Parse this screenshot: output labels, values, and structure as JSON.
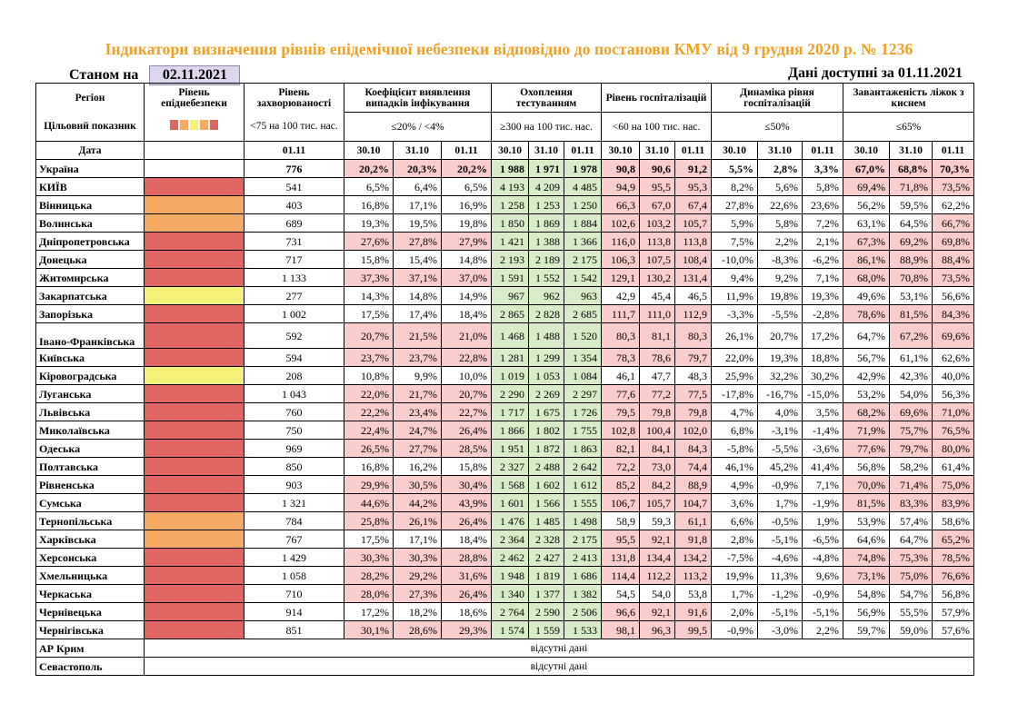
{
  "title": "Індикатори визначення рівнів епідемічної небезпеки відповідно до постанови КМУ від 9 грудня 2020 р. № 1236",
  "as_of_label": "Станом на",
  "as_of_date": "02.11.2021",
  "available_label": "Дані доступні за  01.11.2021",
  "headers": {
    "region": "Регіон",
    "target": "Цільовий показник",
    "date": "Дата",
    "level": "Рівень епіднебезпеки",
    "morbidity": "Рівень захворюваності",
    "morbidity_target": "<75 на 100 тис. нас.",
    "detection": "Коефіцієнт виявлення випадків інфікування",
    "detection_target": "≤20% / <4%",
    "testing": "Охоплення тестуванням",
    "testing_target": "≥300 на 100 тис. нас.",
    "hosp": "Рівень госпіталізацій",
    "hosp_target": "<60 на 100 тис. нас.",
    "dyn": "Динаміка рівня госпіталізацій",
    "dyn_target": "≤50%",
    "beds": "Завантаженість ліжок з киснем",
    "beds_target": "≤65%",
    "d0": "30.10",
    "d1": "31.10",
    "d2": "01.11"
  },
  "legend_colors": [
    "#e06460",
    "#f4aa62",
    "#f4f078",
    "#f4aa62",
    "#e06460"
  ],
  "rows": [
    {
      "name": "Україна",
      "level": "",
      "m": "776",
      "c": [
        "20,2%",
        "20,3%",
        "20,2%"
      ],
      "t": [
        "1 988",
        "1 971",
        "1 978"
      ],
      "h": [
        "90,8",
        "90,6",
        "91,2"
      ],
      "d": [
        "5,5%",
        "2,8%",
        "3,3%"
      ],
      "b": [
        "67,0%",
        "68,8%",
        "70,3%"
      ]
    },
    {
      "name": "КИЇВ",
      "level": "red",
      "m": "541",
      "c": [
        "6,5%",
        "6,4%",
        "6,5%"
      ],
      "t": [
        "4 193",
        "4 209",
        "4 485"
      ],
      "h": [
        "94,9",
        "95,5",
        "95,3"
      ],
      "d": [
        "8,2%",
        "5,6%",
        "5,8%"
      ],
      "b": [
        "69,4%",
        "71,8%",
        "73,5%"
      ]
    },
    {
      "name": "Вінницька",
      "level": "orange",
      "m": "403",
      "c": [
        "16,8%",
        "17,1%",
        "16,9%"
      ],
      "t": [
        "1 258",
        "1 253",
        "1 250"
      ],
      "h": [
        "66,3",
        "67,0",
        "67,4"
      ],
      "d": [
        "27,8%",
        "22,6%",
        "23,6%"
      ],
      "b": [
        "56,2%",
        "59,5%",
        "62,2%"
      ]
    },
    {
      "name": "Волинська",
      "level": "orange",
      "m": "689",
      "c": [
        "19,3%",
        "19,5%",
        "19,8%"
      ],
      "t": [
        "1 850",
        "1 869",
        "1 884"
      ],
      "h": [
        "102,6",
        "103,2",
        "105,7"
      ],
      "d": [
        "5,9%",
        "5,8%",
        "7,2%"
      ],
      "b": [
        "63,1%",
        "64,5%",
        "66,7%"
      ]
    },
    {
      "name": "Дніпропетровська",
      "level": "red",
      "m": "731",
      "c": [
        "27,6%",
        "27,8%",
        "27,9%"
      ],
      "t": [
        "1 421",
        "1 388",
        "1 366"
      ],
      "h": [
        "116,0",
        "113,8",
        "113,8"
      ],
      "d": [
        "7,5%",
        "2,2%",
        "2,1%"
      ],
      "b": [
        "67,3%",
        "69,2%",
        "69,8%"
      ]
    },
    {
      "name": "Донецька",
      "level": "red",
      "m": "717",
      "c": [
        "15,8%",
        "15,4%",
        "14,8%"
      ],
      "t": [
        "2 193",
        "2 189",
        "2 175"
      ],
      "h": [
        "106,3",
        "107,5",
        "108,4"
      ],
      "d": [
        "-10,0%",
        "-8,3%",
        "-6,2%"
      ],
      "b": [
        "86,1%",
        "88,9%",
        "88,4%"
      ]
    },
    {
      "name": "Житомирська",
      "level": "red",
      "m": "1 133",
      "c": [
        "37,3%",
        "37,1%",
        "37,0%"
      ],
      "t": [
        "1 591",
        "1 552",
        "1 542"
      ],
      "h": [
        "129,1",
        "130,2",
        "131,4"
      ],
      "d": [
        "9,4%",
        "9,2%",
        "7,1%"
      ],
      "b": [
        "68,0%",
        "70,8%",
        "73,5%"
      ]
    },
    {
      "name": "Закарпатська",
      "level": "yellow",
      "m": "277",
      "c": [
        "14,3%",
        "14,8%",
        "14,9%"
      ],
      "t": [
        "967",
        "962",
        "963"
      ],
      "h": [
        "42,9",
        "45,4",
        "46,5"
      ],
      "d": [
        "11,9%",
        "19,8%",
        "19,3%"
      ],
      "b": [
        "49,6%",
        "53,1%",
        "56,6%"
      ]
    },
    {
      "name": "Запорізька",
      "level": "red",
      "m": "1 002",
      "c": [
        "17,5%",
        "17,4%",
        "18,4%"
      ],
      "t": [
        "2 865",
        "2 828",
        "2 685"
      ],
      "h": [
        "111,7",
        "111,0",
        "112,9"
      ],
      "d": [
        "-3,3%",
        "-5,5%",
        "-2,8%"
      ],
      "b": [
        "78,6%",
        "81,5%",
        "84,3%"
      ]
    },
    {
      "name": "Івано-Франківська",
      "level": "red",
      "m": "592",
      "c": [
        "20,7%",
        "21,5%",
        "21,0%"
      ],
      "t": [
        "1 468",
        "1 488",
        "1 520"
      ],
      "h": [
        "80,3",
        "81,1",
        "80,3"
      ],
      "d": [
        "26,1%",
        "20,7%",
        "17,2%"
      ],
      "b": [
        "64,7%",
        "67,2%",
        "69,6%"
      ],
      "tall": true
    },
    {
      "name": "Київська",
      "level": "red",
      "m": "594",
      "c": [
        "23,7%",
        "23,7%",
        "22,8%"
      ],
      "t": [
        "1 281",
        "1 299",
        "1 354"
      ],
      "h": [
        "78,3",
        "78,6",
        "79,7"
      ],
      "d": [
        "22,0%",
        "19,3%",
        "18,8%"
      ],
      "b": [
        "56,7%",
        "61,1%",
        "62,6%"
      ]
    },
    {
      "name": "Кіровоградська",
      "level": "yellow",
      "m": "208",
      "c": [
        "10,8%",
        "9,9%",
        "10,0%"
      ],
      "t": [
        "1 019",
        "1 053",
        "1 084"
      ],
      "h": [
        "46,1",
        "47,7",
        "48,3"
      ],
      "d": [
        "25,9%",
        "32,2%",
        "30,2%"
      ],
      "b": [
        "42,9%",
        "42,3%",
        "40,0%"
      ]
    },
    {
      "name": "Луганська",
      "level": "red",
      "m": "1 043",
      "c": [
        "22,0%",
        "21,7%",
        "20,7%"
      ],
      "t": [
        "2 290",
        "2 269",
        "2 297"
      ],
      "h": [
        "77,6",
        "77,2",
        "77,5"
      ],
      "d": [
        "-17,8%",
        "-16,7%",
        "-15,0%"
      ],
      "b": [
        "53,2%",
        "54,0%",
        "56,3%"
      ]
    },
    {
      "name": "Львівська",
      "level": "red",
      "m": "760",
      "c": [
        "22,2%",
        "23,4%",
        "22,7%"
      ],
      "t": [
        "1 717",
        "1 675",
        "1 726"
      ],
      "h": [
        "79,5",
        "79,8",
        "79,8"
      ],
      "d": [
        "4,7%",
        "4,0%",
        "3,5%"
      ],
      "b": [
        "68,2%",
        "69,6%",
        "71,0%"
      ]
    },
    {
      "name": "Миколаївська",
      "level": "red",
      "m": "750",
      "c": [
        "22,4%",
        "24,7%",
        "26,4%"
      ],
      "t": [
        "1 866",
        "1 802",
        "1 755"
      ],
      "h": [
        "102,8",
        "100,4",
        "102,0"
      ],
      "d": [
        "6,8%",
        "-3,1%",
        "-1,4%"
      ],
      "b": [
        "71,9%",
        "75,7%",
        "76,5%"
      ]
    },
    {
      "name": "Одеська",
      "level": "red",
      "m": "969",
      "c": [
        "26,5%",
        "27,7%",
        "28,5%"
      ],
      "t": [
        "1 951",
        "1 872",
        "1 863"
      ],
      "h": [
        "82,1",
        "84,1",
        "84,3"
      ],
      "d": [
        "-5,8%",
        "-5,5%",
        "-3,6%"
      ],
      "b": [
        "77,6%",
        "79,7%",
        "80,0%"
      ]
    },
    {
      "name": "Полтавська",
      "level": "red",
      "m": "850",
      "c": [
        "16,8%",
        "16,2%",
        "15,8%"
      ],
      "t": [
        "2 327",
        "2 488",
        "2 642"
      ],
      "h": [
        "72,2",
        "73,0",
        "74,4"
      ],
      "d": [
        "46,1%",
        "45,2%",
        "41,4%"
      ],
      "b": [
        "56,8%",
        "58,2%",
        "61,4%"
      ]
    },
    {
      "name": "Рівненська",
      "level": "red",
      "m": "903",
      "c": [
        "29,9%",
        "30,5%",
        "30,4%"
      ],
      "t": [
        "1 568",
        "1 602",
        "1 612"
      ],
      "h": [
        "85,2",
        "84,2",
        "88,9"
      ],
      "d": [
        "4,9%",
        "-0,9%",
        "7,1%"
      ],
      "b": [
        "70,0%",
        "71,4%",
        "75,0%"
      ]
    },
    {
      "name": "Сумська",
      "level": "red",
      "m": "1 321",
      "c": [
        "44,6%",
        "44,2%",
        "43,9%"
      ],
      "t": [
        "1 601",
        "1 566",
        "1 555"
      ],
      "h": [
        "106,7",
        "105,7",
        "104,7"
      ],
      "d": [
        "3,6%",
        "1,7%",
        "-1,9%"
      ],
      "b": [
        "81,5%",
        "83,3%",
        "83,9%"
      ]
    },
    {
      "name": "Тернопільська",
      "level": "orange",
      "m": "784",
      "c": [
        "25,8%",
        "26,1%",
        "26,4%"
      ],
      "t": [
        "1 476",
        "1 485",
        "1 498"
      ],
      "h": [
        "58,9",
        "59,3",
        "61,1"
      ],
      "d": [
        "6,6%",
        "-0,5%",
        "1,9%"
      ],
      "b": [
        "53,9%",
        "57,4%",
        "58,6%"
      ]
    },
    {
      "name": "Харківська",
      "level": "orange",
      "m": "767",
      "c": [
        "17,5%",
        "17,1%",
        "18,4%"
      ],
      "t": [
        "2 364",
        "2 328",
        "2 175"
      ],
      "h": [
        "95,5",
        "92,1",
        "91,8"
      ],
      "d": [
        "2,8%",
        "-5,1%",
        "-6,5%"
      ],
      "b": [
        "64,6%",
        "64,7%",
        "65,2%"
      ]
    },
    {
      "name": "Херсонська",
      "level": "red",
      "m": "1 429",
      "c": [
        "30,3%",
        "30,3%",
        "28,8%"
      ],
      "t": [
        "2 462",
        "2 427",
        "2 413"
      ],
      "h": [
        "131,8",
        "134,4",
        "134,2"
      ],
      "d": [
        "-7,5%",
        "-4,6%",
        "-4,8%"
      ],
      "b": [
        "74,8%",
        "75,3%",
        "78,5%"
      ]
    },
    {
      "name": "Хмельницька",
      "level": "red",
      "m": "1 058",
      "c": [
        "28,2%",
        "29,2%",
        "31,6%"
      ],
      "t": [
        "1 948",
        "1 819",
        "1 686"
      ],
      "h": [
        "114,4",
        "112,2",
        "113,2"
      ],
      "d": [
        "19,9%",
        "11,3%",
        "9,6%"
      ],
      "b": [
        "73,1%",
        "75,0%",
        "76,6%"
      ]
    },
    {
      "name": "Черкаська",
      "level": "red",
      "m": "710",
      "c": [
        "28,0%",
        "27,3%",
        "26,4%"
      ],
      "t": [
        "1 340",
        "1 377",
        "1 382"
      ],
      "h": [
        "54,5",
        "54,0",
        "53,8"
      ],
      "d": [
        "1,7%",
        "-1,2%",
        "-0,9%"
      ],
      "b": [
        "54,8%",
        "54,7%",
        "56,8%"
      ]
    },
    {
      "name": "Чернівецька",
      "level": "red",
      "m": "914",
      "c": [
        "17,2%",
        "18,2%",
        "18,6%"
      ],
      "t": [
        "2 764",
        "2 590",
        "2 506"
      ],
      "h": [
        "96,6",
        "92,1",
        "91,6"
      ],
      "d": [
        "2,0%",
        "-5,1%",
        "-5,1%"
      ],
      "b": [
        "56,9%",
        "55,5%",
        "57,9%"
      ]
    },
    {
      "name": "Чернігівська",
      "level": "red",
      "m": "851",
      "c": [
        "30,1%",
        "28,6%",
        "29,3%"
      ],
      "t": [
        "1 574",
        "1 559",
        "1 533"
      ],
      "h": [
        "98,1",
        "96,3",
        "99,5"
      ],
      "d": [
        "-0,9%",
        "-3,0%",
        "2,2%"
      ],
      "b": [
        "59,7%",
        "59,0%",
        "57,6%"
      ]
    }
  ],
  "missing_rows": [
    {
      "name": "АР Крим",
      "note": "відсутні дані"
    },
    {
      "name": "Севастополь",
      "note": "відсутні дані"
    }
  ],
  "colors": {
    "title": "#f0a020",
    "red_cell": "#f8cdcb",
    "green_cell": "#d8ecc9",
    "level_red": "#e06460",
    "level_orange": "#f4aa62",
    "level_yellow": "#f4f078",
    "date_box": "#ddd6ee"
  }
}
